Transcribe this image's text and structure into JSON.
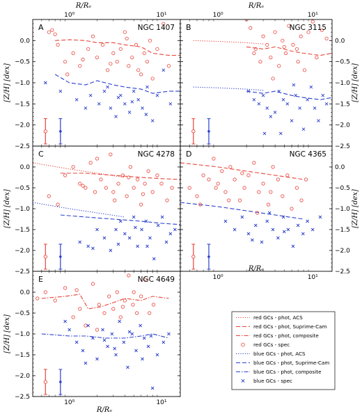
{
  "figure": {
    "top_axis_label": "R/Rₑ",
    "bottom_axis_label": "R/Rₑ",
    "y_axis_label": "[Z/H] [dex]"
  },
  "chart_data": [
    {
      "type": "scatter",
      "panel": "A",
      "title": "NGC 1407",
      "xscale": "log",
      "xlim": [
        0.4,
        16
      ],
      "ylim": [
        -2.5,
        0.5
      ],
      "xticks": [
        "10⁰",
        "10¹"
      ],
      "yticks": [
        "−2.5",
        "−2.0",
        "−1.5",
        "−1.0",
        "−0.5",
        "0.0"
      ],
      "red_error": {
        "x": 0.55,
        "y": -2.15,
        "err": 0.3
      },
      "blue_error": {
        "x": 0.8,
        "y": -2.15,
        "err": 0.3
      },
      "red_phot_suprime": {
        "x": [
          0.7,
          1.0,
          1.5,
          2,
          3,
          4,
          6,
          8,
          12,
          16
        ],
        "y": [
          0.0,
          0.02,
          0.0,
          -0.05,
          -0.05,
          -0.1,
          -0.15,
          -0.3,
          -0.35,
          -0.35
        ]
      },
      "blue_phot_suprime": {
        "x": [
          0.7,
          1.0,
          1.5,
          2,
          3,
          4,
          6,
          8,
          12,
          16
        ],
        "y": [
          -0.8,
          -1.0,
          -1.05,
          -0.95,
          -1.05,
          -1.1,
          -1.15,
          -1.25,
          -1.2,
          -1.2
        ]
      },
      "red_spec": {
        "x": [
          0.6,
          0.65,
          0.7,
          0.75,
          0.9,
          1.1,
          1.3,
          1.6,
          1.8,
          2.0,
          2.3,
          2.6,
          3.0,
          3.3,
          3.6,
          4.0,
          4.4,
          4.8,
          5.3,
          6.0,
          6.5,
          7.0,
          8.0,
          9.0,
          10.5,
          12.0,
          0.95,
          1.4,
          2.8,
          4.2,
          5.6,
          7.5
        ],
        "y": [
          0.2,
          0.25,
          0.15,
          -0.1,
          -0.5,
          -0.3,
          -0.6,
          -0.2,
          0.1,
          -0.4,
          -0.1,
          -0.7,
          -0.3,
          -0.5,
          -0.2,
          0.2,
          -0.6,
          -0.4,
          -0.1,
          -0.8,
          -0.3,
          -0.5,
          -0.9,
          -0.2,
          0.4,
          -0.6,
          -0.8,
          -0.45,
          -0.55,
          0.05,
          -0.7,
          0.0
        ]
      },
      "blue_spec": {
        "x": [
          0.55,
          0.8,
          1.2,
          1.7,
          2.1,
          2.4,
          2.8,
          3.2,
          3.6,
          4.0,
          4.5,
          5.0,
          5.6,
          6.2,
          7.0,
          8.0,
          9.0,
          10.5,
          12.5,
          1.5,
          2.6,
          3.4,
          4.8,
          6.8
        ],
        "y": [
          -1.0,
          -1.2,
          -1.4,
          -1.3,
          -1.5,
          -1.2,
          -1.6,
          -1.8,
          -1.3,
          -1.5,
          -1.7,
          -1.2,
          -1.4,
          -1.6,
          -1.1,
          -1.9,
          -1.3,
          -0.7,
          -1.5,
          -1.6,
          -1.1,
          -1.35,
          -1.45,
          -1.75
        ]
      }
    },
    {
      "type": "scatter",
      "panel": "B",
      "title": "NGC 3115",
      "xscale": "log",
      "xlim": [
        0.4,
        16
      ],
      "ylim": [
        -2.5,
        0.5
      ],
      "xticks": [
        "10⁰",
        "10¹"
      ],
      "yticks": [
        "−2.5",
        "−2.0",
        "−1.5",
        "−1.0",
        "−0.5",
        "0.0"
      ],
      "red_error": {
        "x": 0.55,
        "y": -2.15,
        "err": 0.3
      },
      "blue_error": {
        "x": 0.8,
        "y": -2.15,
        "err": 0.3
      },
      "red_phot_acs": {
        "x": [
          0.55,
          1.0,
          2.0,
          3.0
        ],
        "y": [
          0.0,
          -0.02,
          -0.05,
          -0.08
        ]
      },
      "red_phot_suprime": {
        "x": [
          2,
          3,
          4,
          6,
          8,
          12,
          16
        ],
        "y": [
          -0.15,
          -0.2,
          -0.15,
          -0.25,
          -0.3,
          -0.35,
          -0.3
        ]
      },
      "blue_phot_acs": {
        "x": [
          0.55,
          1.0,
          2.0,
          3.0
        ],
        "y": [
          -1.1,
          -1.12,
          -1.15,
          -1.18
        ]
      },
      "blue_phot_suprime": {
        "x": [
          2,
          3,
          4,
          6,
          8,
          12,
          16
        ],
        "y": [
          -1.2,
          -1.25,
          -1.2,
          -1.3,
          -1.35,
          -1.4,
          -1.35
        ]
      },
      "red_spec": {
        "x": [
          2.0,
          2.2,
          2.5,
          2.8,
          3.0,
          3.3,
          3.6,
          4.0,
          4.4,
          4.8,
          5.2,
          5.6,
          6.2,
          6.8,
          7.5,
          8.2,
          9.0,
          10.0,
          11.0,
          12.5,
          14.0,
          2.4,
          3.8,
          5.0,
          7.0
        ],
        "y": [
          0.5,
          0.3,
          -0.2,
          -0.5,
          0.1,
          -0.1,
          -0.4,
          0.2,
          -0.6,
          0.0,
          -0.3,
          0.35,
          -0.1,
          -0.2,
          0.1,
          -0.7,
          0.2,
          0.45,
          -0.4,
          0.25,
          0.05,
          -0.3,
          -0.9,
          -0.15,
          -0.5
        ]
      },
      "blue_spec": {
        "x": [
          2.1,
          2.4,
          2.7,
          3.0,
          3.3,
          3.6,
          4.0,
          4.4,
          4.9,
          5.4,
          6.0,
          6.6,
          7.3,
          8.0,
          8.8,
          9.6,
          10.5,
          11.5,
          12.8,
          14.0,
          3.1,
          4.6,
          6.3
        ],
        "y": [
          -1.2,
          -1.4,
          -1.5,
          -1.3,
          -1.6,
          -1.8,
          -1.7,
          -1.2,
          -1.4,
          -1.5,
          -1.9,
          -1.3,
          -1.6,
          -2.1,
          -1.4,
          -1.1,
          -1.6,
          -1.9,
          -1.3,
          -1.5,
          -2.2,
          -2.2,
          -1.05
        ]
      }
    },
    {
      "type": "scatter",
      "panel": "C",
      "title": "NGC 4278",
      "xscale": "log",
      "xlim": [
        0.4,
        16
      ],
      "ylim": [
        -2.5,
        0.5
      ],
      "xticks": [],
      "yticks": [
        "−2.5",
        "−2.0",
        "−1.5",
        "−1.0",
        "−0.5",
        "0.0"
      ],
      "red_error": {
        "x": 0.55,
        "y": -2.15,
        "err": 0.3
      },
      "blue_error": {
        "x": 0.8,
        "y": -2.15,
        "err": 0.3
      },
      "red_phot_acs": {
        "x": [
          0.4,
          1,
          2,
          4
        ],
        "y": [
          0.1,
          -0.05,
          -0.15,
          -0.25
        ]
      },
      "red_phot_suprime": {
        "x": [
          0.8,
          1.5,
          3,
          6,
          10,
          16
        ],
        "y": [
          -0.15,
          -0.15,
          -0.2,
          -0.25,
          -0.28,
          -0.3
        ]
      },
      "blue_phot_acs": {
        "x": [
          0.4,
          1,
          2,
          4
        ],
        "y": [
          -0.85,
          -1.0,
          -1.1,
          -1.2
        ]
      },
      "blue_phot_suprime": {
        "x": [
          0.8,
          1.5,
          3,
          6,
          10,
          16
        ],
        "y": [
          -1.15,
          -1.2,
          -1.25,
          -1.3,
          -1.35,
          -1.38
        ]
      },
      "red_spec": {
        "x": [
          0.6,
          0.75,
          0.9,
          1.1,
          1.3,
          1.5,
          1.7,
          1.9,
          2.2,
          2.5,
          2.8,
          3.1,
          3.4,
          3.8,
          4.2,
          4.6,
          5.0,
          5.5,
          6.0,
          6.6,
          7.2,
          8.0,
          9.0,
          10.0,
          11.5,
          13.0,
          1.4,
          2.0,
          3.0,
          4.4,
          6.3
        ],
        "y": [
          -0.7,
          -0.9,
          -0.2,
          0.0,
          -0.4,
          -0.5,
          0.1,
          -0.6,
          -0.3,
          -0.5,
          0.3,
          -0.8,
          -0.4,
          -0.2,
          -0.7,
          0.0,
          -0.5,
          -0.3,
          -0.9,
          -0.4,
          -0.1,
          -0.6,
          -0.2,
          -0.4,
          -0.8,
          -0.5,
          -0.45,
          0.2,
          -0.6,
          -0.25,
          -0.65
        ]
      },
      "blue_spec": {
        "x": [
          1.3,
          1.6,
          1.8,
          2.0,
          2.4,
          2.8,
          3.2,
          3.6,
          4.0,
          4.5,
          5.0,
          5.5,
          6.1,
          6.8,
          7.5,
          8.3,
          9.2,
          10.2,
          11.3,
          12.5,
          14.0,
          3.4,
          5.2,
          7.0
        ],
        "y": [
          -1.8,
          -1.9,
          -1.95,
          -1.5,
          -1.7,
          -2.0,
          -1.5,
          -1.3,
          -1.6,
          -1.7,
          -1.2,
          -1.9,
          -1.5,
          -1.3,
          -1.7,
          -2.2,
          -1.4,
          -1.2,
          -1.8,
          -1.6,
          -1.5,
          -1.85,
          -1.45,
          -1.9
        ]
      }
    },
    {
      "type": "scatter",
      "panel": "D",
      "title": "NGC 4365",
      "xscale": "log",
      "xlim": [
        0.4,
        16
      ],
      "ylim": [
        -2.5,
        0.5
      ],
      "xticks": [
        "10⁰",
        "10¹"
      ],
      "yticks": [
        "−2.5",
        "−2.0",
        "−1.5",
        "−1.0",
        "−0.5",
        "0.0"
      ],
      "red_error": {
        "x": 0.55,
        "y": -2.15,
        "err": 0.3
      },
      "blue_error": {
        "x": 0.8,
        "y": -2.15,
        "err": 0.3
      },
      "red_phot_suprime": {
        "x": [
          0.4,
          1,
          2,
          4,
          8
        ],
        "y": [
          0.1,
          0.0,
          -0.1,
          -0.2,
          -0.3
        ]
      },
      "blue_phot_suprime": {
        "x": [
          0.4,
          1,
          2,
          4,
          8
        ],
        "y": [
          -0.85,
          -0.95,
          -1.05,
          -1.15,
          -1.25
        ]
      },
      "red_spec": {
        "x": [
          0.5,
          0.6,
          0.7,
          0.8,
          0.9,
          1.0,
          1.1,
          1.2,
          1.35,
          1.5,
          1.7,
          1.9,
          2.1,
          2.4,
          2.7,
          3.0,
          3.4,
          3.8,
          4.3,
          4.8,
          5.4,
          6.0,
          6.8,
          7.6,
          8.5,
          0.65,
          0.95,
          1.3,
          1.8,
          2.6,
          3.6
        ],
        "y": [
          -0.5,
          -0.7,
          -0.2,
          -0.3,
          0.2,
          -0.4,
          -0.1,
          -0.6,
          0.0,
          -0.3,
          -0.8,
          -0.5,
          -0.2,
          0.1,
          -0.6,
          -0.4,
          -0.9,
          0.0,
          -0.3,
          -0.7,
          -0.2,
          -1.0,
          -0.5,
          -0.8,
          -0.3,
          -0.9,
          -0.5,
          -0.8,
          -0.15,
          -1.1,
          -0.6
        ]
      },
      "blue_spec": {
        "x": [
          1.2,
          1.5,
          1.8,
          2.1,
          2.5,
          2.9,
          3.3,
          3.8,
          4.3,
          4.9,
          5.5,
          6.2,
          7.0,
          7.9,
          8.8,
          10.0,
          12.0,
          2.3,
          3.5,
          5.0
        ],
        "y": [
          -1.3,
          -1.5,
          -1.2,
          -1.6,
          -1.4,
          -1.8,
          -1.3,
          -1.5,
          -1.7,
          -1.2,
          -1.5,
          -1.9,
          -1.4,
          -1.6,
          -1.3,
          -1.5,
          -1.2,
          -1.75,
          -1.1,
          -1.55
        ]
      }
    },
    {
      "type": "scatter",
      "panel": "E",
      "title": "NGC 4649",
      "xscale": "log",
      "xlim": [
        0.4,
        16
      ],
      "ylim": [
        -2.5,
        0.5
      ],
      "xticks": [
        "10⁰",
        "10¹"
      ],
      "yticks": [
        "−2.5",
        "−2.0",
        "−1.5",
        "−1.0",
        "−0.5",
        "0.0"
      ],
      "red_error": {
        "x": 0.55,
        "y": -2.15,
        "err": 0.3
      },
      "blue_error": {
        "x": 0.8,
        "y": -2.15,
        "err": 0.3
      },
      "red_phot_composite": {
        "x": [
          0.5,
          0.9,
          1.3,
          1.6,
          2.2,
          3,
          4,
          6,
          8,
          12
        ],
        "y": [
          -0.15,
          -0.1,
          -0.05,
          -0.4,
          -0.35,
          -0.25,
          -0.15,
          -0.2,
          -0.1,
          -0.15
        ]
      },
      "blue_phot_composite": {
        "x": [
          0.5,
          1.0,
          1.5,
          2.5,
          4,
          6,
          8,
          12
        ],
        "y": [
          -1.0,
          -1.05,
          -1.05,
          -1.1,
          -1.1,
          -1.05,
          -1.0,
          -1.1
        ]
      },
      "red_spec": {
        "x": [
          0.45,
          0.55,
          0.7,
          0.9,
          1.1,
          1.3,
          1.5,
          1.8,
          2.1,
          2.4,
          2.7,
          3.0,
          3.3,
          3.6,
          4.0,
          4.4,
          4.9,
          5.4,
          6.0,
          6.6,
          7.4,
          8.2,
          1.2,
          2.0,
          3.8,
          5.0
        ],
        "y": [
          -0.15,
          0.0,
          -0.2,
          0.1,
          -0.6,
          -0.4,
          -0.8,
          0.2,
          -0.3,
          -0.5,
          -0.1,
          -0.4,
          0.0,
          -0.6,
          -0.2,
          0.4,
          -0.3,
          -0.5,
          -0.1,
          0.3,
          -0.5,
          -0.3,
          0.05,
          -0.9,
          -0.35,
          0.0
        ]
      },
      "blue_spec": {
        "x": [
          0.9,
          1.0,
          1.2,
          1.4,
          1.6,
          1.8,
          2.0,
          2.3,
          2.6,
          2.9,
          3.2,
          3.5,
          3.9,
          4.3,
          4.8,
          5.3,
          5.9,
          6.5,
          7.2,
          8.0,
          9.0,
          10.5,
          12.0,
          1.5,
          2.4,
          3.1,
          4.5,
          6.2,
          7.7
        ],
        "y": [
          -0.7,
          -0.9,
          -1.2,
          -1.4,
          -0.8,
          -1.1,
          -1.6,
          -0.9,
          -1.3,
          -1.0,
          -1.5,
          -0.7,
          -1.2,
          -1.8,
          -1.0,
          -1.4,
          -0.8,
          -1.1,
          -1.3,
          -2.3,
          -1.5,
          -1.2,
          -1.0,
          -1.7,
          -1.15,
          -1.35,
          -0.95,
          -1.6,
          -1.05
        ]
      }
    }
  ],
  "legend": {
    "items": [
      {
        "label": "red GCs - phot, ACS",
        "color": "#e8443a",
        "style": "dotted"
      },
      {
        "label": "red GCs - phot, Suprime-Cam",
        "color": "#e8443a",
        "style": "dashed"
      },
      {
        "label": "red GCs - phot, composite",
        "color": "#e8443a",
        "style": "dashdot"
      },
      {
        "label": "red GCs - spec",
        "color": "#e8443a",
        "style": "circle"
      },
      {
        "label": "blue GCs - phot, ACS",
        "color": "#2a3fcc",
        "style": "dotted"
      },
      {
        "label": "blue GCs - phot, Suprime-Cam",
        "color": "#2a3fcc",
        "style": "dashed"
      },
      {
        "label": "blue GCs - phot, composite",
        "color": "#2a3fcc",
        "style": "dashdot"
      },
      {
        "label": "blue GCs - spec",
        "color": "#2a3fcc",
        "style": "cross"
      }
    ]
  },
  "colors": {
    "red": "#e8443a",
    "blue": "#2a3fcc"
  }
}
